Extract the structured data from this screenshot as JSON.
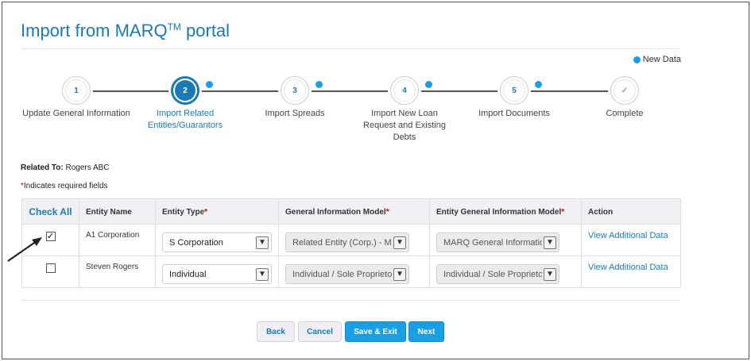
{
  "header": {
    "title": "Import from MARQ",
    "trademark": "TM",
    "title_suffix": " portal"
  },
  "legend": {
    "label": "New Data",
    "color": "#1a9ee6"
  },
  "steps": [
    {
      "number": "1",
      "label": "Update General Information",
      "state": "pending",
      "new_data": false
    },
    {
      "number": "2",
      "label": "Import Related Entities/Guarantors",
      "state": "active",
      "new_data": true
    },
    {
      "number": "3",
      "label": "Import Spreads",
      "state": "pending",
      "new_data": true
    },
    {
      "number": "4",
      "label": "Import New Loan Request and Existing Debts",
      "state": "pending",
      "new_data": true
    },
    {
      "number": "5",
      "label": "Import Documents",
      "state": "pending",
      "new_data": true
    },
    {
      "number": "✓",
      "label": "Complete",
      "state": "complete-icon",
      "new_data": false
    }
  ],
  "related": {
    "label": "Related To:",
    "value": " Rogers ABC"
  },
  "required_note": {
    "star": "*",
    "text": "Indicates required fields"
  },
  "table": {
    "headers": {
      "check_all": "Check All",
      "entity_name": "Entity Name",
      "entity_type": "Entity Type",
      "general_info_model": "General Information Model",
      "entity_general_info_model": "Entity General Information Model",
      "action": "Action"
    },
    "required_star": "*",
    "rows": [
      {
        "checked": true,
        "check_mark": "✓",
        "entity_name": "A1 Corporation",
        "entity_type": "S Corporation",
        "general_info_model": "Related Entity (Corp.) - MAR",
        "entity_general_info_model": "MARQ General Information",
        "action": "View Additional Data"
      },
      {
        "checked": false,
        "check_mark": "",
        "entity_name": "Steven Rogers",
        "entity_type": "Individual",
        "general_info_model": "Individual / Sole Proprietors",
        "entity_general_info_model": "Individual / Sole Proprietors",
        "action": "View Additional Data"
      }
    ]
  },
  "buttons": {
    "back": "Back",
    "cancel": "Cancel",
    "save_exit": "Save & Exit",
    "next": "Next"
  },
  "colors": {
    "accent": "#1a7ab5",
    "primary_button": "#1a9ee6",
    "required": "#c00000"
  },
  "icons": {
    "dropdown": "chevron-down-icon",
    "complete": "checkmark-icon",
    "pointer": "arrow-pointer-icon"
  }
}
